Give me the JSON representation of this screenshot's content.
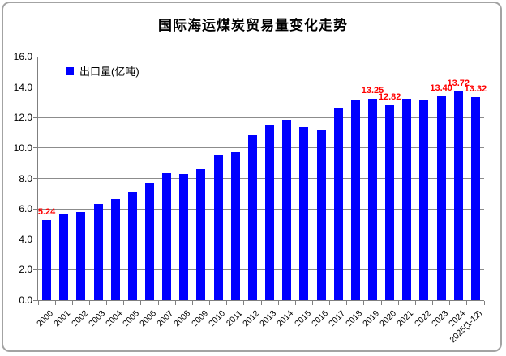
{
  "chart": {
    "title": "国际海运煤炭贸易量变化走势",
    "legend": {
      "label": "出口量(亿吨)",
      "marker_color": "#0000ff"
    }
  },
  "chart_data": {
    "type": "bar",
    "title": "国际海运煤炭贸易量变化走势",
    "series_name": "出口量(亿吨)",
    "categories": [
      "2000",
      "2001",
      "2002",
      "2003",
      "2004",
      "2005",
      "2006",
      "2007",
      "2008",
      "2009",
      "2010",
      "2011",
      "2012",
      "2013",
      "2014",
      "2015",
      "2016",
      "2017",
      "2018",
      "2019",
      "2020",
      "2021",
      "2022",
      "2023",
      "2024",
      "2025(1-12)"
    ],
    "values": [
      5.24,
      5.68,
      5.82,
      6.32,
      6.67,
      7.1,
      7.72,
      8.33,
      8.3,
      8.62,
      9.52,
      9.72,
      10.82,
      11.52,
      11.88,
      11.35,
      11.15,
      12.62,
      13.2,
      13.25,
      12.82,
      13.25,
      13.12,
      13.4,
      13.72,
      13.32
    ],
    "data_labels": [
      {
        "index": 0,
        "text": "5.24"
      },
      {
        "index": 19,
        "text": "13.25"
      },
      {
        "index": 20,
        "text": "12.82"
      },
      {
        "index": 23,
        "text": "13.40"
      },
      {
        "index": 24,
        "text": "13.72"
      },
      {
        "index": 25,
        "text": "13.32"
      }
    ],
    "data_label_color": "#ff0000",
    "bar_color": "#0000ff",
    "xlabel": "",
    "ylabel": "",
    "ylim": [
      0,
      16
    ],
    "ytick_step": 2,
    "ytick_labels": [
      "0.0",
      "2.0",
      "4.0",
      "6.0",
      "8.0",
      "10.0",
      "12.0",
      "14.0",
      "16.0"
    ],
    "grid": true,
    "legend_position": "top-left-inside"
  }
}
